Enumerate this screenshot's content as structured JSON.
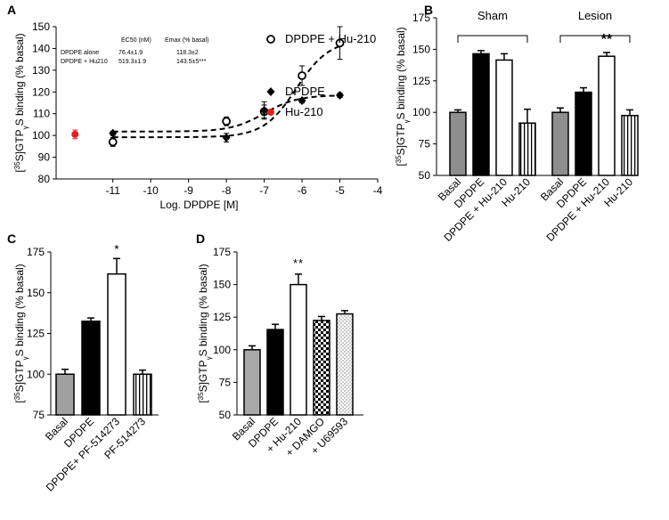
{
  "chart_data": [
    {
      "panel": "A",
      "type": "scatter",
      "ylabel": "[35S]GTPγS binding (% basal)",
      "xlabel": "Log. DPDPE [M]",
      "xticks": [
        "-11",
        "-10",
        "-9",
        "-8",
        "-7",
        "-6",
        "-5",
        "-4"
      ],
      "xlim": [
        -12.5,
        -4
      ],
      "yticks": [
        "80",
        "90",
        "100",
        "110",
        "120",
        "130",
        "140",
        "150"
      ],
      "ylim": [
        80,
        150
      ],
      "table": {
        "col1": "EC50 (nM)",
        "col2": "Emax (% basal)",
        "rows": [
          {
            "label": "DPDPE alone",
            "ec50": "76.4±1.9",
            "emax": "118.3±2"
          },
          {
            "label": "DPDPE + Hu210",
            "ec50": "519.3±1.9",
            "emax": "143.5±5***"
          }
        ]
      },
      "series": [
        {
          "name": "DPDPE + Hu-210",
          "marker": "open-circle",
          "x": [
            -11,
            -8,
            -7,
            -6,
            -5
          ],
          "y": [
            97,
            106.5,
            111,
            127.5,
            142.5
          ],
          "err": [
            2,
            2,
            3,
            4.5,
            7.5
          ]
        },
        {
          "name": "DPDPE",
          "marker": "diamond",
          "x": [
            -11,
            -8,
            -7,
            -6,
            -5
          ],
          "y": [
            101,
            99,
            111.5,
            116,
            118.5
          ],
          "err": [
            1,
            2,
            4,
            1,
            1
          ]
        },
        {
          "name": "Hu-210",
          "marker": "red-dot",
          "x": [
            -12
          ],
          "y": [
            100.5
          ],
          "err": [
            2
          ]
        }
      ]
    },
    {
      "panel": "B",
      "type": "bar",
      "ylabel": "[35S]GTPγS binding (% basal)",
      "yticks": [
        "50",
        "75",
        "100",
        "125",
        "150",
        "175"
      ],
      "ylim": [
        50,
        175
      ],
      "groups": [
        {
          "name": "Sham",
          "categories": [
            "Basal",
            "DPDPE",
            "DPDPE + Hu-210",
            "Hu-210"
          ],
          "values": [
            100,
            146.5,
            141.5,
            91.5
          ],
          "err": [
            2,
            2.5,
            5,
            11
          ]
        },
        {
          "name": "Lesion",
          "categories": [
            "Basal",
            "DPDPE",
            "DPDPE + Hu-210",
            "Hu-210"
          ],
          "values": [
            100,
            116,
            144.5,
            97.5
          ],
          "err": [
            3.5,
            3.5,
            3,
            4.5
          ],
          "annotation": "**"
        }
      ]
    },
    {
      "panel": "C",
      "type": "bar",
      "ylabel": "[35S]GTPγS binding (% basal)",
      "yticks": [
        "75",
        "100",
        "125",
        "150",
        "175"
      ],
      "ylim": [
        75,
        175
      ],
      "categories": [
        "Basal",
        "DPDPE",
        "DPDPE+ PF-514273",
        "PF-514273"
      ],
      "values": [
        100,
        132.5,
        161.5,
        100
      ],
      "err": [
        3,
        2,
        9.5,
        2.5
      ],
      "annotation": "*"
    },
    {
      "panel": "D",
      "type": "bar",
      "ylabel": "[35S]GTPγS binding (% basal)",
      "yticks": [
        "50",
        "75",
        "100",
        "125",
        "150",
        "175"
      ],
      "ylim": [
        50,
        175
      ],
      "categories": [
        "Basal",
        "DPDPE",
        "+ Hu-210",
        "+ DAMGO",
        "+ U69593"
      ],
      "values": [
        100,
        115.5,
        150,
        122.5,
        127.5
      ],
      "err": [
        3,
        4,
        8,
        3,
        2.5
      ],
      "annotation": "**"
    }
  ]
}
